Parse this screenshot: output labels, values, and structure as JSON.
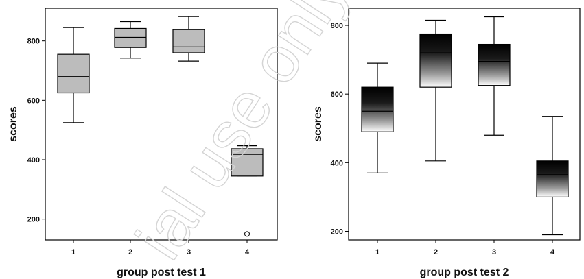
{
  "chart_data": [
    {
      "type": "boxplot",
      "xlabel": "group post test 1",
      "ylabel": "scores",
      "categories": [
        "1",
        "2",
        "3",
        "4"
      ],
      "ylim": [
        130,
        910
      ],
      "yticks": [
        200,
        400,
        600,
        800
      ],
      "box_fill": "#bcbcbc",
      "boxes": [
        {
          "group": "1",
          "min": 525,
          "q1": 625,
          "median": 680,
          "q3": 755,
          "max": 845
        },
        {
          "group": "2",
          "min": 742,
          "q1": 778,
          "median": 812,
          "q3": 842,
          "max": 865
        },
        {
          "group": "3",
          "min": 732,
          "q1": 760,
          "median": 780,
          "q3": 838,
          "max": 882
        },
        {
          "group": "4",
          "min": 345,
          "q1": 345,
          "median": 418,
          "q3": 437,
          "max": 447,
          "outliers": [
            150
          ]
        }
      ]
    },
    {
      "type": "boxplot",
      "xlabel": "group post test 2",
      "ylabel": "scores",
      "categories": [
        "1",
        "2",
        "3",
        "4"
      ],
      "ylim": [
        175,
        850
      ],
      "yticks": [
        200,
        400,
        600,
        800
      ],
      "box_fill": "gradient-black-to-white",
      "boxes": [
        {
          "group": "1",
          "min": 370,
          "q1": 490,
          "median": 550,
          "q3": 620,
          "max": 690
        },
        {
          "group": "2",
          "min": 405,
          "q1": 620,
          "median": 720,
          "q3": 775,
          "max": 815
        },
        {
          "group": "3",
          "min": 480,
          "q1": 625,
          "median": 695,
          "q3": 745,
          "max": 825
        },
        {
          "group": "4",
          "min": 190,
          "q1": 300,
          "median": 365,
          "q3": 405,
          "max": 535
        }
      ]
    }
  ],
  "watermark": "ial use only"
}
